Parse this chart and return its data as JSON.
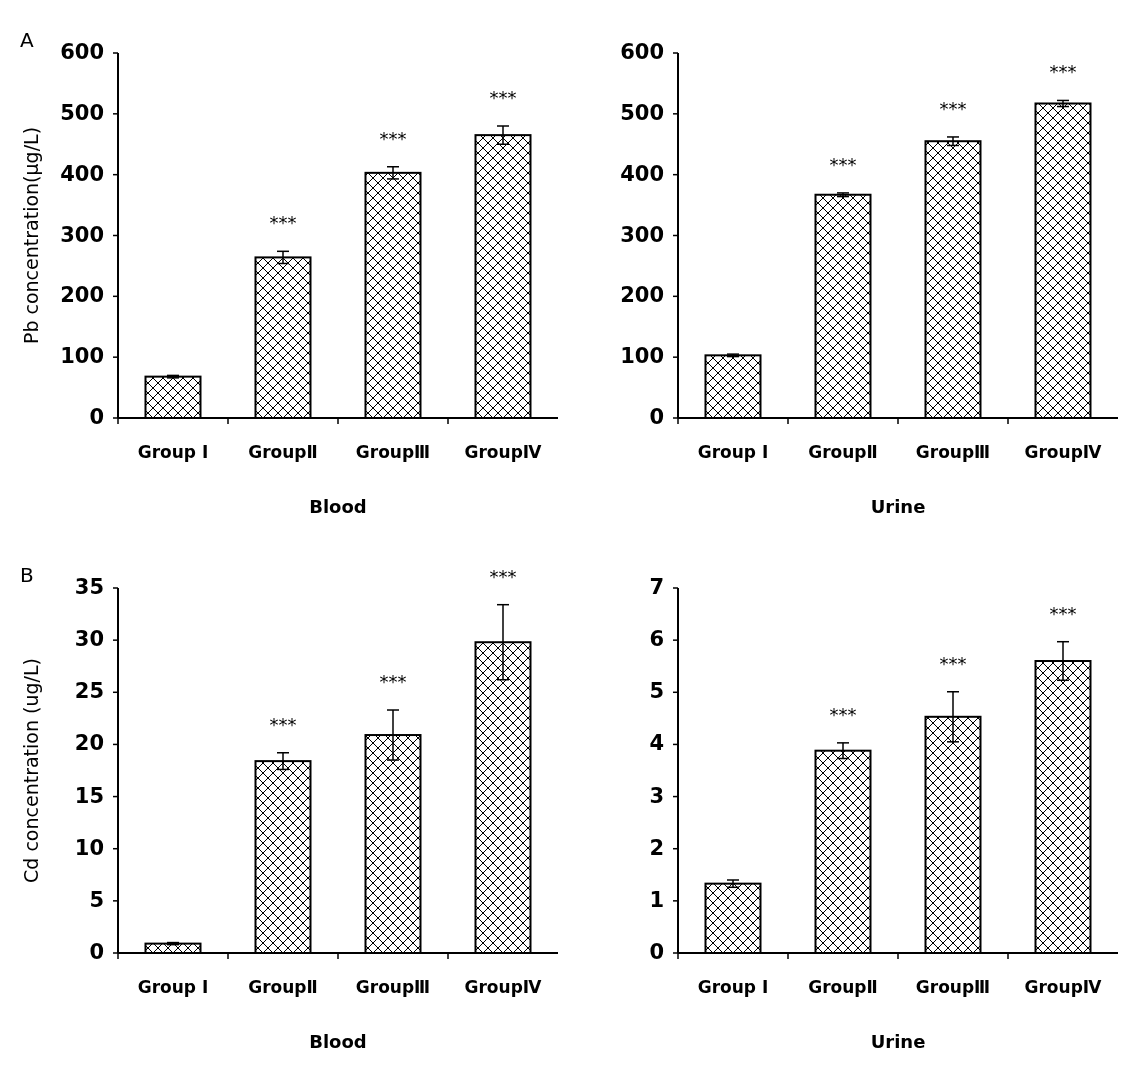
{
  "chart_data": [
    {
      "type": "bar",
      "ylabel": "Pb concentration(μg/L)",
      "xlabel": "Blood",
      "categories": [
        "Group Ⅰ",
        "GroupⅡ",
        "GroupⅢ",
        "GroupⅣ"
      ],
      "values": [
        68,
        264,
        403,
        465
      ],
      "errors": [
        2,
        10,
        10,
        15
      ],
      "value_labels": [
        null,
        "***",
        "***",
        "***"
      ],
      "color": "#000000",
      "ylim": [
        0,
        600
      ],
      "yticks": [
        0,
        100,
        200,
        300,
        400,
        500,
        600
      ],
      "annotations": [
        "A"
      ]
    },
    {
      "type": "bar",
      "xlabel": "Urine",
      "categories": [
        "Group Ⅰ",
        "GroupⅡ",
        "GroupⅢ",
        "GroupⅣ"
      ],
      "values": [
        103,
        367,
        455,
        517
      ],
      "errors": [
        2,
        3,
        7,
        5
      ],
      "value_labels": [
        null,
        "***",
        "***",
        "***"
      ],
      "color": "#000000",
      "ylim": [
        0,
        600
      ],
      "yticks": [
        0,
        100,
        200,
        300,
        400,
        500,
        600
      ]
    },
    {
      "type": "bar",
      "ylabel": "Cd concentration (ug/L)",
      "xlabel": "Blood",
      "categories": [
        "Group Ⅰ",
        "GroupⅡ",
        "GroupⅢ",
        "GroupⅣ"
      ],
      "values": [
        0.9,
        18.4,
        20.9,
        29.8
      ],
      "errors": [
        0.1,
        0.8,
        2.4,
        3.6
      ],
      "value_labels": [
        null,
        "***",
        "***",
        "***"
      ],
      "color": "#000000",
      "ylim": [
        0,
        35
      ],
      "yticks": [
        0,
        5,
        10,
        15,
        20,
        25,
        30,
        35
      ],
      "annotations": [
        "B"
      ]
    },
    {
      "type": "bar",
      "xlabel": "Urine",
      "categories": [
        "Group Ⅰ",
        "GroupⅡ",
        "GroupⅢ",
        "GroupⅣ"
      ],
      "values": [
        1.33,
        3.88,
        4.53,
        5.6
      ],
      "errors": [
        0.07,
        0.15,
        0.48,
        0.37
      ],
      "value_labels": [
        null,
        "***",
        "***",
        "***"
      ],
      "color": "#000000",
      "ylim": [
        0,
        7
      ],
      "yticks": [
        0,
        1,
        2,
        3,
        4,
        5,
        6,
        7
      ]
    }
  ]
}
